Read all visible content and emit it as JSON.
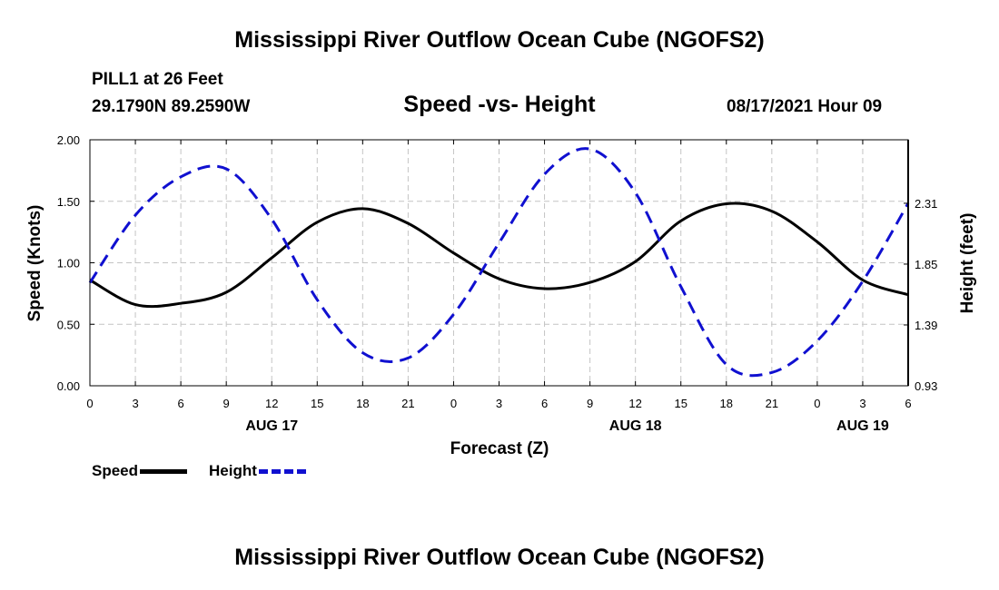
{
  "header": {
    "main_title": "Mississippi River Outflow Ocean Cube (NGOFS2)",
    "station": "PILL1 at 26 Feet",
    "coords": "29.1790N  89.2590W",
    "datetime": "08/17/2021 Hour 09",
    "footer_title": "Mississippi River Outflow Ocean Cube (NGOFS2)"
  },
  "chart_data": {
    "type": "line",
    "title": "Speed -vs- Height",
    "xlabel": "Forecast (Z)",
    "ylabel": "Speed (Knots)",
    "y2label": "Height (feet)",
    "x": [
      0,
      3,
      6,
      9,
      12,
      15,
      18,
      21,
      24,
      27,
      30,
      33,
      36,
      39,
      42,
      45,
      48,
      51,
      54
    ],
    "x_tick_labels": [
      "0",
      "3",
      "6",
      "9",
      "12",
      "15",
      "18",
      "21",
      "0",
      "3",
      "6",
      "9",
      "12",
      "15",
      "18",
      "21",
      "0",
      "3",
      "6"
    ],
    "day_labels": [
      {
        "x": 12,
        "label": "AUG 17"
      },
      {
        "x": 36,
        "label": "AUG 18"
      },
      {
        "x": 51,
        "label": "AUG 19"
      }
    ],
    "xlim": [
      0,
      54
    ],
    "ylim": [
      0,
      2.0
    ],
    "y_ticks": [
      "0.00",
      "0.50",
      "1.00",
      "1.50",
      "2.00"
    ],
    "y2lim": [
      0.93,
      2.79
    ],
    "y2_ticks": [
      "0.93",
      "1.39",
      "1.85",
      "2.31"
    ],
    "grid": true,
    "legend_position": "bottom-left",
    "series": [
      {
        "name": "Speed",
        "axis": "left",
        "color": "#000000",
        "style": "solid",
        "values": [
          0.86,
          0.66,
          0.67,
          0.76,
          1.04,
          1.33,
          1.44,
          1.32,
          1.08,
          0.87,
          0.79,
          0.84,
          1.01,
          1.34,
          1.48,
          1.42,
          1.17,
          0.86,
          0.74
        ]
      },
      {
        "name": "Height",
        "axis": "right",
        "color": "#1010d0",
        "style": "dashed",
        "values": [
          1.71,
          2.22,
          2.51,
          2.57,
          2.19,
          1.58,
          1.18,
          1.14,
          1.47,
          2.01,
          2.53,
          2.72,
          2.39,
          1.68,
          1.09,
          1.03,
          1.27,
          1.72,
          2.31
        ]
      }
    ]
  }
}
